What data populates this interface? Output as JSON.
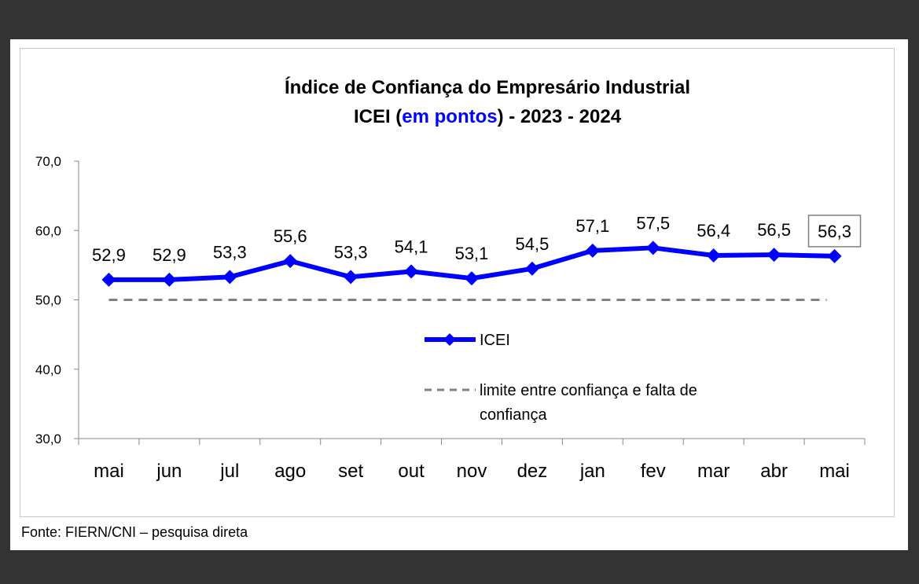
{
  "chart_data": {
    "type": "line",
    "title_line1": "Índice de Confiança do Empresário Industrial",
    "title_line2_pre": "ICEI (",
    "title_line2_accent": "em pontos",
    "title_line2_post": ") - 2023 - 2024",
    "categories": [
      "mai",
      "jun",
      "jul",
      "ago",
      "set",
      "out",
      "nov",
      "dez",
      "jan",
      "fev",
      "mar",
      "abr",
      "mai"
    ],
    "series": [
      {
        "name": "ICEI",
        "values": [
          52.9,
          52.9,
          53.3,
          55.6,
          53.3,
          54.1,
          53.1,
          54.5,
          57.1,
          57.5,
          56.4,
          56.5,
          56.3
        ],
        "labels": [
          "52,9",
          "52,9",
          "53,3",
          "55,6",
          "53,3",
          "54,1",
          "53,1",
          "54,5",
          "57,1",
          "57,5",
          "56,4",
          "56,5",
          "56,3"
        ],
        "color": "#0000ff",
        "marker": "diamond"
      },
      {
        "name": "limite entre confiança e falta de confiança",
        "values": [
          50,
          50,
          50,
          50,
          50,
          50,
          50,
          50,
          50,
          50,
          50,
          50,
          50
        ],
        "color": "#808080",
        "style": "dashed"
      }
    ],
    "yticks": [
      "70,0",
      "60,0",
      "50,0",
      "40,0",
      "30,0"
    ],
    "ylim": [
      30,
      70
    ],
    "highlighted_label": "last",
    "legend_placement": "inside-center",
    "grid": false
  },
  "legend": {
    "icei": "ICEI",
    "limit_line1": "limite entre confiança e falta de",
    "limit_line2": "confiança"
  },
  "source": "Fonte: FIERN/CNI – pesquisa direta"
}
